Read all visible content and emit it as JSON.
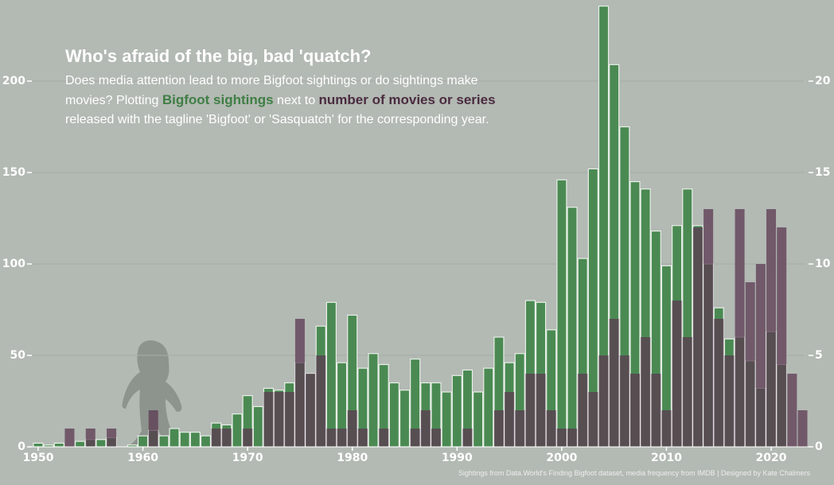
{
  "chart_data": {
    "type": "bar",
    "title": "Who's afraid of the big, bad 'quatch?",
    "subtitle": [
      "Does media attention lead to more Bigfoot sightings or do sightings make movies? Plotting ",
      "Bigfoot sightings",
      " next to ",
      "number of movies or series",
      " released with the tagline 'Bigfoot' or 'Sasquatch' for the corresponding year."
    ],
    "caption": "Sightings from Data.World's Finding Bigfoot dataset, media frequency from IMDB | Designed by Kate Chalmers",
    "x": [
      1950,
      1951,
      1952,
      1953,
      1954,
      1955,
      1956,
      1957,
      1958,
      1959,
      1960,
      1961,
      1962,
      1963,
      1964,
      1965,
      1966,
      1967,
      1968,
      1969,
      1970,
      1971,
      1972,
      1973,
      1974,
      1975,
      1976,
      1977,
      1978,
      1979,
      1980,
      1981,
      1982,
      1983,
      1984,
      1985,
      1986,
      1987,
      1988,
      1989,
      1990,
      1991,
      1992,
      1993,
      1994,
      1995,
      1996,
      1997,
      1998,
      1999,
      2000,
      2001,
      2002,
      2003,
      2004,
      2005,
      2006,
      2007,
      2008,
      2009,
      2010,
      2011,
      2012,
      2013,
      2014,
      2015,
      2016,
      2017,
      2018,
      2019,
      2020,
      2021,
      2022,
      2023
    ],
    "series": [
      {
        "name": "Bigfoot sightings",
        "color": "#4a8a52",
        "values": [
          2,
          1,
          2,
          0,
          3,
          4,
          4,
          5,
          0,
          1,
          6,
          9,
          6,
          10,
          8,
          8,
          6,
          13,
          12,
          18,
          28,
          22,
          32,
          31,
          35,
          46,
          40,
          66,
          79,
          46,
          72,
          43,
          51,
          45,
          35,
          31,
          48,
          35,
          35,
          30,
          39,
          42,
          30,
          43,
          60,
          46,
          51,
          80,
          79,
          64,
          146,
          131,
          103,
          152,
          241,
          209,
          175,
          145,
          141,
          118,
          99,
          121,
          141,
          121,
          100,
          76,
          59,
          60,
          47,
          32,
          63,
          45,
          0,
          0
        ]
      },
      {
        "name": "number of movies or series",
        "color": "#5b3a52",
        "axis": "y2",
        "values": [
          0,
          0,
          0,
          1,
          0,
          1,
          0,
          1,
          0,
          0,
          0,
          2,
          0,
          0,
          0,
          0,
          0,
          1,
          1,
          0,
          1,
          0,
          3,
          3,
          3,
          7,
          4,
          5,
          1,
          1,
          2,
          1,
          0,
          1,
          0,
          0,
          1,
          2,
          1,
          0,
          0,
          1,
          0,
          0,
          2,
          3,
          2,
          4,
          4,
          2,
          1,
          1,
          4,
          3,
          5,
          7,
          5,
          4,
          6,
          4,
          2,
          8,
          6,
          12,
          13,
          7,
          5,
          13,
          9,
          10,
          13,
          12,
          4,
          2
        ]
      }
    ],
    "xlim": [
      1947,
      2026
    ],
    "xticks": [
      1950,
      1960,
      1970,
      1980,
      1990,
      2000,
      2010,
      2020
    ],
    "ylim": [
      0,
      240
    ],
    "yticks": [
      0,
      50,
      100,
      150,
      200
    ],
    "y2lim": [
      0,
      24
    ],
    "y2ticks": [
      0,
      5,
      10,
      15,
      20
    ],
    "grid": true
  }
}
